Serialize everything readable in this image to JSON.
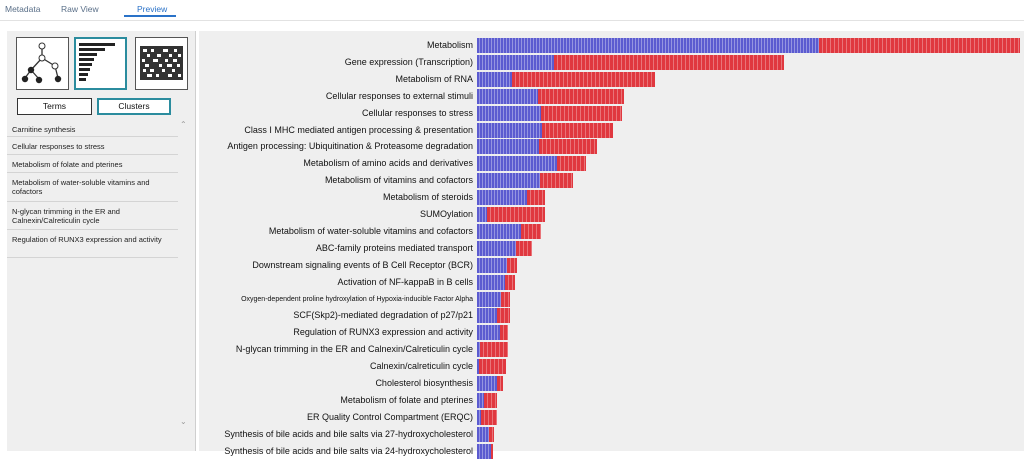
{
  "tabs": [
    {
      "label": "Metadata",
      "active": false
    },
    {
      "label": "Raw View",
      "active": false
    },
    {
      "label": "Preview",
      "active": true
    }
  ],
  "left_panel": {
    "view_icons": [
      "network-view-icon",
      "bar-chart-view-icon",
      "heatmap-view-icon"
    ],
    "selected_view": "bar-chart-view-icon",
    "buttons": {
      "terms": "Terms",
      "clusters": "Clusters",
      "selected": "Clusters"
    },
    "list": [
      "Carnitine synthesis",
      "Cellular responses to stress",
      "Metabolism of folate and pterines",
      "Metabolism of water-soluble vitamins and cofactors",
      "N-glycan trimming in the ER and Calnexin/Calreticulin cycle",
      "Regulation of RUNX3 expression and activity"
    ]
  },
  "colors": {
    "blue": "#5b5bd0",
    "red": "#e0383f",
    "accent": "#2b8c9e",
    "tab_active": "#2a72c8"
  },
  "chart_data": {
    "type": "bar",
    "orientation": "horizontal",
    "stacked": true,
    "categories": [
      "Metabolism",
      "Gene expression (Transcription)",
      "Metabolism of RNA",
      "Cellular responses to external stimuli",
      "Cellular responses to stress",
      "Class I MHC mediated antigen processing & presentation",
      "Antigen processing: Ubiquitination & Proteasome degradation",
      "Metabolism of amino acids and derivatives",
      "Metabolism of vitamins and cofactors",
      "Metabolism of steroids",
      "SUMOylation",
      "Metabolism of water-soluble vitamins and cofactors",
      "ABC-family proteins mediated transport",
      "Downstream signaling events of B Cell Receptor (BCR)",
      "Activation of NF-kappaB in B cells",
      "Oxygen-dependent proline hydroxylation of Hypoxia-inducible Factor Alpha",
      "SCF(Skp2)-mediated degradation of p27/p21",
      "Regulation of RUNX3 expression and activity",
      "N-glycan trimming in the ER and Calnexin/Calreticulin cycle",
      "Calnexin/calreticulin cycle",
      "Cholesterol biosynthesis",
      "Metabolism of folate and pterines",
      "ER Quality Control Compartment (ERQC)",
      "Synthesis of bile acids and bile salts via 27-hydroxycholesterol",
      "Synthesis of bile acids and bile salts via 24-hydroxycholesterol"
    ],
    "small_label_index": 15,
    "series": [
      {
        "color": "#5b5bd0",
        "values": [
          343,
          77,
          35,
          61,
          64,
          65,
          62,
          80,
          63,
          50,
          10,
          44,
          39,
          30,
          28,
          24,
          20,
          23,
          3,
          2,
          20,
          7,
          4,
          12,
          14
        ]
      },
      {
        "color": "#e0383f",
        "values": [
          201,
          231,
          143,
          86,
          81,
          71,
          58,
          29,
          33,
          18,
          58,
          20,
          16,
          10,
          10,
          9,
          13,
          8,
          28,
          27,
          6,
          13,
          16,
          5,
          2
        ]
      }
    ],
    "xlim": [
      0,
      545
    ]
  }
}
